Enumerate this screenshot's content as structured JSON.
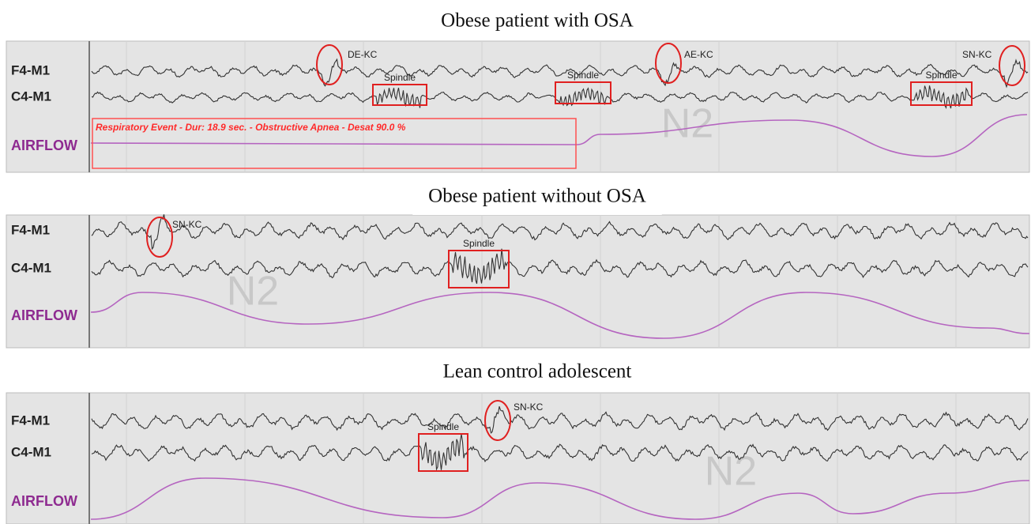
{
  "panels": [
    {
      "title": "Obese patient with OSA",
      "channels": [
        "F4-M1",
        "C4-M1",
        "AIRFLOW"
      ],
      "kcomplexes": [
        "DE-KC",
        "AE-KC",
        "SN-KC"
      ],
      "spindles": [
        "Spindle",
        "Spindle",
        "Spindle"
      ],
      "event": "Respiratory Event - Dur: 18.9 sec. - Obstructive Apnea - Desat 90.0 %",
      "stage": "N2"
    },
    {
      "title": "Obese patient without OSA",
      "channels": [
        "F4-M1",
        "C4-M1",
        "AIRFLOW"
      ],
      "kcomplexes": [
        "SN-KC"
      ],
      "spindles": [
        "Spindle"
      ],
      "stage": "N2"
    },
    {
      "title": "Lean control adolescent",
      "channels": [
        "F4-M1",
        "C4-M1",
        "AIRFLOW"
      ],
      "kcomplexes": [
        "SN-KC"
      ],
      "spindles": [
        "Spindle"
      ],
      "stage": "N2"
    }
  ]
}
